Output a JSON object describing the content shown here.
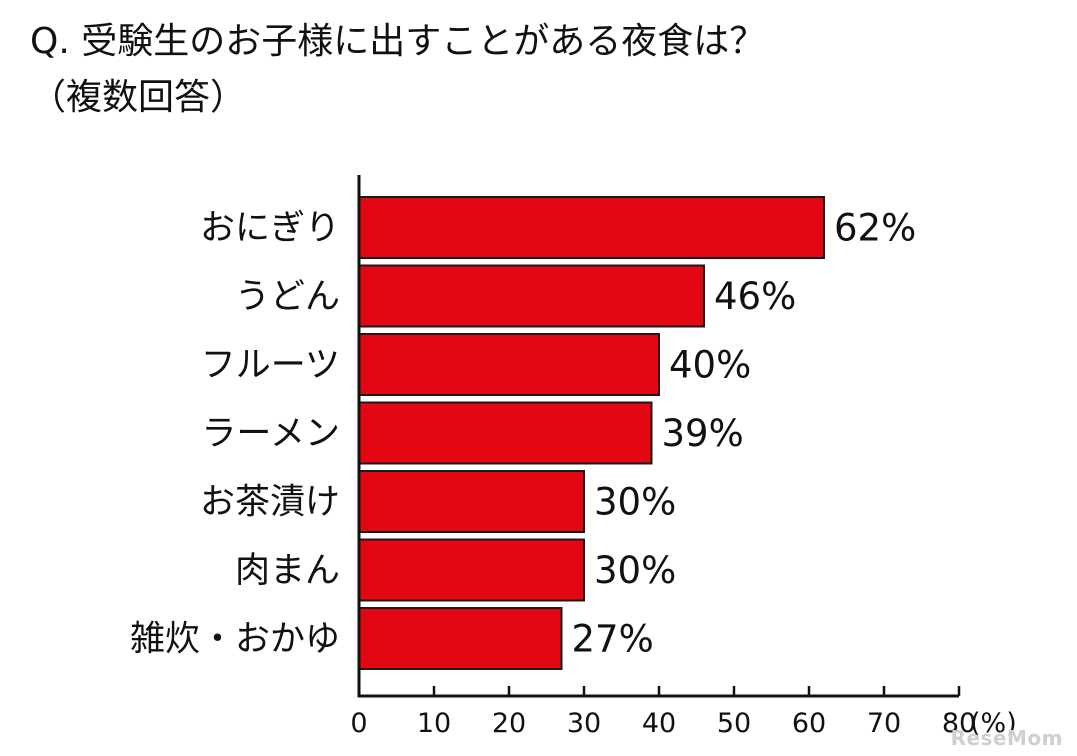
{
  "title_line1": "Q. 受験生のお子様に出すことがある夜食は？",
  "title_line2": "（複数回答）",
  "watermark": "ReseMom",
  "colors": {
    "bar_fill": "#e30613",
    "bar_stroke": "#1a1a1a",
    "axis": "#111111"
  },
  "chart_data": {
    "type": "bar",
    "orientation": "horizontal",
    "title": "Q. 受験生のお子様に出すことがある夜食は？（複数回答）",
    "categories": [
      "おにぎり",
      "うどん",
      "フルーツ",
      "ラーメン",
      "お茶漬け",
      "肉まん",
      "雑炊・おかゆ"
    ],
    "values": [
      62,
      46,
      40,
      39,
      30,
      30,
      27
    ],
    "value_labels": [
      "62%",
      "46%",
      "40%",
      "39%",
      "30%",
      "30%",
      "27%"
    ],
    "xlim": [
      0,
      80
    ],
    "xticks": [
      0,
      10,
      20,
      30,
      40,
      50,
      60,
      70,
      80
    ],
    "xtick_labels": [
      "0",
      "10",
      "20",
      "30",
      "40",
      "50",
      "60",
      "70",
      "80"
    ],
    "unit_label": "(%)",
    "grid": false
  }
}
